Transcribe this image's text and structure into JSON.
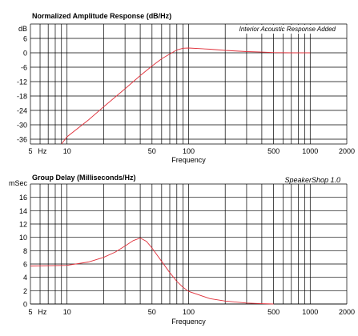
{
  "chart_data": [
    {
      "type": "line",
      "title": "Normalized Amplitude Response (dB/Hz)",
      "annotation": "Interior Acoustic Response Added",
      "xlabel": "Frequency",
      "ylabel": "dB",
      "x_scale": "log",
      "xlim": [
        5,
        2000
      ],
      "ylim": [
        -38,
        12
      ],
      "grid": true,
      "x_ticks": [
        5,
        10,
        50,
        100,
        500,
        1000,
        2000
      ],
      "x_tick_labels": [
        "5",
        "10",
        "50",
        "100",
        "500",
        "1000",
        "2000"
      ],
      "x_minor_tick_label": "Hz",
      "y_ticks": [
        6,
        0,
        -6,
        -12,
        -18,
        -24,
        -30,
        -36
      ],
      "y_tick_labels": [
        "6",
        "0",
        "-6",
        "-12",
        "-18",
        "-24",
        "-30",
        "-36"
      ],
      "series": [
        {
          "color": "#e0303a",
          "x": [
            9,
            10,
            15,
            20,
            30,
            40,
            50,
            60,
            70,
            80,
            90,
            100,
            150,
            200,
            300,
            400,
            500,
            700,
            1000
          ],
          "y": [
            -38,
            -35,
            -28,
            -22.5,
            -15,
            -9.5,
            -5.5,
            -2.5,
            -0.5,
            1.2,
            1.9,
            2.0,
            1.5,
            1.0,
            0.5,
            0.3,
            0.1,
            0.0,
            0.0
          ]
        }
      ]
    },
    {
      "type": "line",
      "title": "Group Delay (Milliseconds/Hz)",
      "annotation": "SpeakerShop 1.0",
      "xlabel": "Frequency",
      "ylabel": "mSec",
      "x_scale": "log",
      "xlim": [
        5,
        2000
      ],
      "ylim": [
        0,
        18
      ],
      "grid": true,
      "x_ticks": [
        5,
        10,
        50,
        100,
        500,
        1000,
        2000
      ],
      "x_tick_labels": [
        "5",
        "10",
        "50",
        "100",
        "500",
        "1000",
        "2000"
      ],
      "x_minor_tick_label": "Hz",
      "y_ticks": [
        0,
        2,
        4,
        6,
        8,
        10,
        12,
        14,
        16
      ],
      "y_tick_labels": [
        "0",
        "2",
        "4",
        "6",
        "8",
        "10",
        "12",
        "14",
        "16"
      ],
      "series": [
        {
          "color": "#e0303a",
          "x": [
            5,
            10,
            15,
            20,
            25,
            30,
            35,
            40,
            45,
            50,
            60,
            70,
            80,
            90,
            100,
            150,
            200,
            300,
            400,
            500
          ],
          "y": [
            5.7,
            5.8,
            6.3,
            7.0,
            7.8,
            8.7,
            9.5,
            9.9,
            9.4,
            8.4,
            6.4,
            4.7,
            3.4,
            2.5,
            1.9,
            0.8,
            0.45,
            0.15,
            0.05,
            0.0
          ]
        }
      ]
    }
  ]
}
